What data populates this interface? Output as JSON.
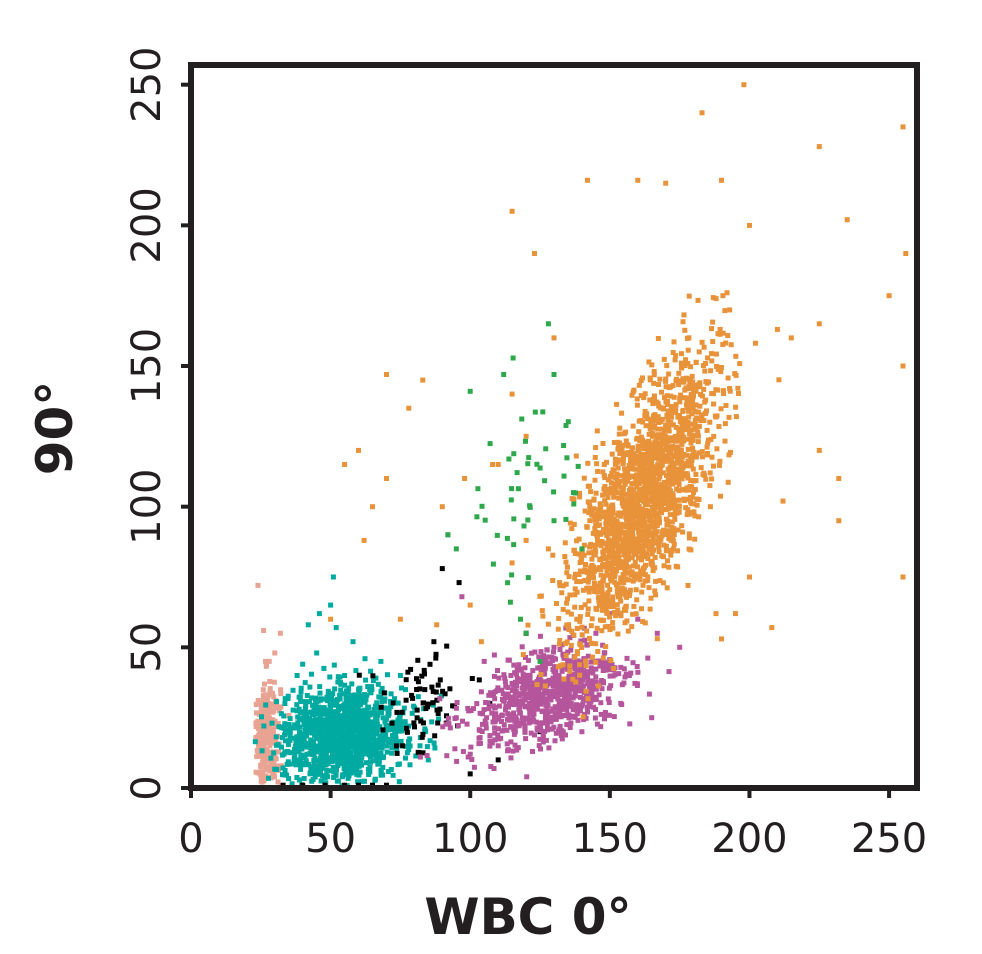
{
  "chart_data": {
    "type": "scatter",
    "title": "",
    "xlabel": "WBC 0°",
    "ylabel": "90°",
    "xlim": [
      0,
      260
    ],
    "ylim": [
      0,
      257
    ],
    "xticks": [
      0,
      50,
      100,
      150,
      200,
      250
    ],
    "yticks": [
      0,
      50,
      100,
      150,
      200,
      250
    ],
    "xtick_labels": [
      "0",
      "50",
      "100",
      "150",
      "200",
      "250"
    ],
    "ytick_labels": [
      "0",
      "50",
      "100",
      "150",
      "200",
      "250"
    ],
    "grid": false,
    "legend": "none",
    "populations": [
      {
        "color": "#e8a392",
        "cx": 27,
        "cy": 18,
        "sx": 2.5,
        "sy": 10,
        "rho": 0,
        "n": 320,
        "extra": [
          [
            24,
            72
          ],
          [
            26,
            56
          ],
          [
            32,
            55
          ],
          [
            30,
            48
          ],
          [
            28,
            45
          ]
        ]
      },
      {
        "color": "#00aaa0",
        "cx": 55,
        "cy": 19,
        "sx": 11,
        "sy": 8,
        "rho": 0.1,
        "n": 1300,
        "extra": [
          [
            46,
            62
          ],
          [
            42,
            58
          ],
          [
            52,
            57
          ],
          [
            50,
            65
          ],
          [
            55,
            40
          ],
          [
            64,
            35
          ],
          [
            72,
            30
          ],
          [
            78,
            22
          ],
          [
            62,
            14
          ],
          [
            58,
            52
          ],
          [
            45,
            48
          ],
          [
            40,
            44
          ],
          [
            82,
            15
          ],
          [
            85,
            10
          ],
          [
            68,
            45
          ],
          [
            51,
            75
          ],
          [
            38,
            40
          ],
          [
            60,
            25
          ],
          [
            75,
            40
          ],
          [
            56,
            30
          ]
        ]
      },
      {
        "color": "#000000",
        "cx": 82,
        "cy": 30,
        "sx": 8,
        "sy": 10,
        "rho": 0.2,
        "n": 70,
        "extra": [
          [
            33,
            1
          ],
          [
            40,
            1
          ],
          [
            48,
            1
          ],
          [
            55,
            1
          ],
          [
            60,
            1
          ],
          [
            65,
            1
          ],
          [
            70,
            1
          ],
          [
            90,
            78
          ],
          [
            96,
            73
          ],
          [
            87,
            52
          ],
          [
            120,
            55
          ],
          [
            107,
            30
          ],
          [
            110,
            10
          ],
          [
            125,
            20
          ],
          [
            100,
            5
          ]
        ]
      },
      {
        "color": "#b5559c",
        "cx": 127,
        "cy": 32,
        "sx": 14,
        "sy": 9,
        "rho": 0.45,
        "n": 750,
        "extra": [
          [
            165,
            25
          ],
          [
            157,
            40
          ],
          [
            145,
            55
          ],
          [
            150,
            62
          ],
          [
            130,
            50
          ],
          [
            110,
            15
          ],
          [
            95,
            25
          ],
          [
            100,
            12
          ],
          [
            92,
            90
          ],
          [
            97,
            68
          ],
          [
            148,
            48
          ],
          [
            160,
            60
          ],
          [
            167,
            55
          ],
          [
            175,
            50
          ],
          [
            140,
            20
          ],
          [
            105,
            45
          ]
        ]
      },
      {
        "color": "#e8923a",
        "cx": 162,
        "cy": 103,
        "sx": 13,
        "sy": 24,
        "rho": 0.72,
        "n": 1900,
        "extra": [
          [
            183,
            240
          ],
          [
            225,
            228
          ],
          [
            255,
            235
          ],
          [
            256,
            190
          ],
          [
            250,
            175
          ],
          [
            235,
            202
          ],
          [
            232,
            110
          ],
          [
            232,
            95
          ],
          [
            225,
            120
          ],
          [
            212,
            102
          ],
          [
            255,
            150
          ],
          [
            255,
            75
          ],
          [
            198,
            250
          ],
          [
            190,
            216
          ],
          [
            200,
            200
          ],
          [
            142,
            216
          ],
          [
            160,
            216
          ],
          [
            170,
            215
          ],
          [
            115,
            205
          ],
          [
            123,
            190
          ],
          [
            70,
            147
          ],
          [
            83,
            145
          ],
          [
            78,
            135
          ],
          [
            60,
            120
          ],
          [
            65,
            100
          ],
          [
            55,
            115
          ],
          [
            50,
            60
          ],
          [
            75,
            60
          ],
          [
            62,
            88
          ],
          [
            70,
            110
          ],
          [
            90,
            100
          ],
          [
            110,
            115
          ],
          [
            120,
            125
          ],
          [
            115,
            140
          ],
          [
            108,
            115
          ],
          [
            130,
            160
          ],
          [
            138,
            118
          ],
          [
            148,
            115
          ],
          [
            200,
            75
          ],
          [
            195,
            62
          ],
          [
            208,
            57
          ],
          [
            190,
            53
          ],
          [
            210,
            163
          ],
          [
            225,
            165
          ],
          [
            215,
            160
          ],
          [
            182,
            155
          ],
          [
            186,
            100
          ],
          [
            172,
            88
          ],
          [
            178,
            72
          ],
          [
            188,
            62
          ],
          [
            88,
            58
          ],
          [
            100,
            65
          ],
          [
            104,
            52
          ],
          [
            115,
            80
          ],
          [
            120,
            88
          ],
          [
            98,
            110
          ],
          [
            128,
            85
          ],
          [
            132,
            73
          ]
        ]
      },
      {
        "color": "#2ea84a",
        "cx": 122,
        "cy": 110,
        "sx": 10,
        "sy": 18,
        "rho": 0.5,
        "n": 45,
        "extra": [
          [
            112,
            147
          ],
          [
            100,
            141
          ],
          [
            130,
            147
          ],
          [
            128,
            165
          ],
          [
            92,
            90
          ],
          [
            95,
            85
          ],
          [
            130,
            95
          ],
          [
            137,
            105
          ],
          [
            140,
            85
          ],
          [
            118,
            60
          ],
          [
            120,
            55
          ],
          [
            125,
            45
          ]
        ]
      }
    ]
  }
}
